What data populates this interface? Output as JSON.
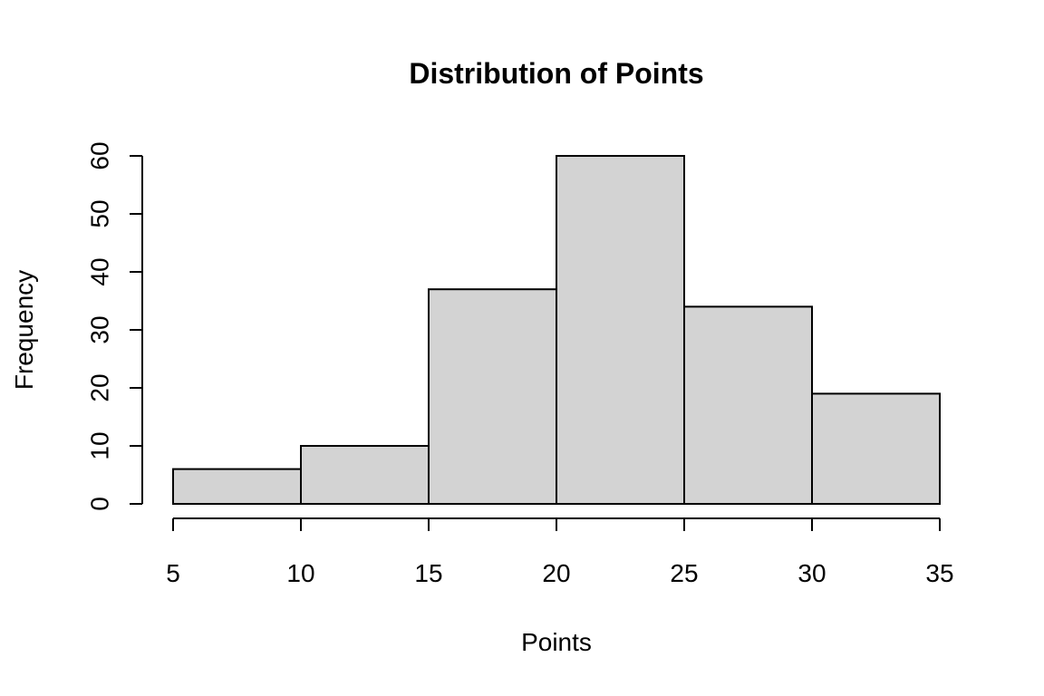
{
  "chart_data": {
    "type": "bar",
    "title": "Distribution of Points",
    "xlabel": "Points",
    "ylabel": "Frequency",
    "bins": [
      {
        "from": 5,
        "to": 10,
        "value": 6
      },
      {
        "from": 10,
        "to": 15,
        "value": 10
      },
      {
        "from": 15,
        "to": 20,
        "value": 37
      },
      {
        "from": 20,
        "to": 25,
        "value": 60
      },
      {
        "from": 25,
        "to": 30,
        "value": 34
      },
      {
        "from": 30,
        "to": 35,
        "value": 19
      }
    ],
    "xlim": [
      5,
      35
    ],
    "ylim": [
      0,
      60
    ],
    "xticks": [
      5,
      10,
      15,
      20,
      25,
      30,
      35
    ],
    "yticks": [
      0,
      10,
      20,
      30,
      40,
      50,
      60
    ],
    "bar_color": "#d3d3d3",
    "grid": false
  }
}
